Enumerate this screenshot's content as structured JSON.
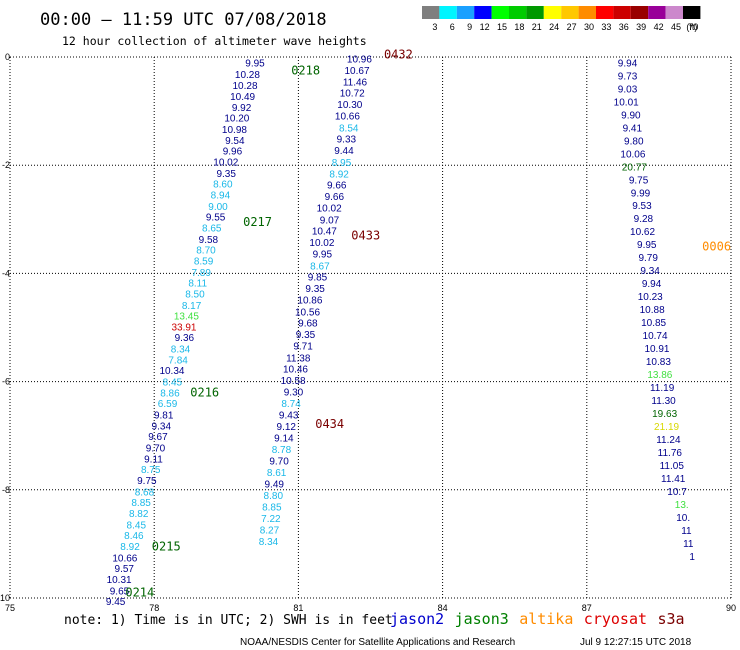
{
  "header": {
    "title": "00:00 – 11:59 UTC 07/08/2018",
    "subtitle": "12 hour collection of altimeter wave heights"
  },
  "legend": {
    "scale": [
      {
        "label": "3",
        "color": "#7f7f7f"
      },
      {
        "label": "6",
        "color": "#00f5ff"
      },
      {
        "label": "9",
        "color": "#1aa0ff"
      },
      {
        "label": "12",
        "color": "#0000ff"
      },
      {
        "label": "15",
        "color": "#00ff00"
      },
      {
        "label": "18",
        "color": "#00cc00"
      },
      {
        "label": "21",
        "color": "#009900"
      },
      {
        "label": "24",
        "color": "#ffff00"
      },
      {
        "label": "27",
        "color": "#ffc800"
      },
      {
        "label": "30",
        "color": "#ff8c00"
      },
      {
        "label": "33",
        "color": "#ff0000"
      },
      {
        "label": "36",
        "color": "#cc0000"
      },
      {
        "label": "39",
        "color": "#990000"
      },
      {
        "label": "42",
        "color": "#990099"
      },
      {
        "label": "45",
        "color": "#cc88cc"
      },
      {
        "label": "70",
        "color": "#000000"
      }
    ],
    "unit": "(ft)"
  },
  "axes": {
    "x_ticks": [
      "75",
      "78",
      "81",
      "84",
      "87",
      "90"
    ],
    "y_ticks": [
      "0",
      "-2",
      "-4",
      "-6",
      "-8",
      "-10"
    ],
    "lon_range": [
      75,
      90
    ],
    "lat_range": [
      -10,
      0
    ]
  },
  "colors": {
    "navy": "#00008b",
    "cyan": "#1ab8e8",
    "green": "#006400",
    "lime": "#40e040",
    "yellow": "#d8d800",
    "red": "#cc0000",
    "darkred": "#7a0000",
    "orange": "#ff8c00"
  },
  "track_a": [
    {
      "t": "9.95",
      "lon": 80.3,
      "lat": -0.1,
      "c": "navy"
    },
    {
      "t": "10.28",
      "lon": 80.2,
      "lat": -0.31,
      "c": "navy"
    },
    {
      "t": "10.28",
      "lon": 80.15,
      "lat": -0.52,
      "c": "navy"
    },
    {
      "t": "10.49",
      "lon": 80.1,
      "lat": -0.72,
      "c": "navy"
    },
    {
      "t": "9.92",
      "lon": 80.02,
      "lat": -0.92,
      "c": "navy"
    },
    {
      "t": "10.20",
      "lon": 79.98,
      "lat": -1.12,
      "c": "navy"
    },
    {
      "t": "10.98",
      "lon": 79.93,
      "lat": -1.33,
      "c": "navy"
    },
    {
      "t": "9.54",
      "lon": 79.88,
      "lat": -1.53,
      "c": "navy"
    },
    {
      "t": "9.96",
      "lon": 79.83,
      "lat": -1.73,
      "c": "navy"
    },
    {
      "t": "10.02",
      "lon": 79.75,
      "lat": -1.93,
      "c": "navy"
    },
    {
      "t": "9.35",
      "lon": 79.7,
      "lat": -2.14,
      "c": "navy"
    },
    {
      "t": "8.60",
      "lon": 79.63,
      "lat": -2.34,
      "c": "cyan"
    },
    {
      "t": "8.94",
      "lon": 79.58,
      "lat": -2.54,
      "c": "cyan"
    },
    {
      "t": "9.00",
      "lon": 79.53,
      "lat": -2.75,
      "c": "cyan"
    },
    {
      "t": "9.55",
      "lon": 79.48,
      "lat": -2.95,
      "c": "navy"
    },
    {
      "t": "8.65",
      "lon": 79.4,
      "lat": -3.15,
      "c": "cyan"
    },
    {
      "t": "9.58",
      "lon": 79.33,
      "lat": -3.36,
      "c": "navy"
    },
    {
      "t": "8.70",
      "lon": 79.28,
      "lat": -3.56,
      "c": "cyan"
    },
    {
      "t": "8.59",
      "lon": 79.23,
      "lat": -3.76,
      "c": "cyan"
    },
    {
      "t": "7.89",
      "lon": 79.18,
      "lat": -3.97,
      "c": "cyan"
    },
    {
      "t": "8.11",
      "lon": 79.1,
      "lat": -4.17,
      "c": "cyan"
    },
    {
      "t": "8.50",
      "lon": 79.05,
      "lat": -4.37,
      "c": "cyan"
    },
    {
      "t": "8.17",
      "lon": 78.98,
      "lat": -4.58,
      "c": "cyan"
    },
    {
      "t": "13.45",
      "lon": 78.93,
      "lat": -4.78,
      "c": "lime"
    },
    {
      "t": "33.91",
      "lon": 78.88,
      "lat": -4.98,
      "c": "red"
    },
    {
      "t": "9.36",
      "lon": 78.83,
      "lat": -5.18,
      "c": "navy"
    },
    {
      "t": "8.34",
      "lon": 78.75,
      "lat": -5.39,
      "c": "cyan"
    },
    {
      "t": "7.84",
      "lon": 78.7,
      "lat": -5.59,
      "c": "cyan"
    },
    {
      "t": "10.34",
      "lon": 78.63,
      "lat": -5.79,
      "c": "navy"
    },
    {
      "t": "8.45",
      "lon": 78.58,
      "lat": -6.0,
      "c": "cyan"
    },
    {
      "t": "8.86",
      "lon": 78.53,
      "lat": -6.2,
      "c": "cyan"
    },
    {
      "t": "6.59",
      "lon": 78.48,
      "lat": -6.4,
      "c": "cyan"
    },
    {
      "t": "9.81",
      "lon": 78.4,
      "lat": -6.61,
      "c": "navy"
    },
    {
      "t": "9.34",
      "lon": 78.35,
      "lat": -6.81,
      "c": "navy"
    },
    {
      "t": "9.67",
      "lon": 78.28,
      "lat": -7.01,
      "c": "navy"
    },
    {
      "t": "9.70",
      "lon": 78.23,
      "lat": -7.22,
      "c": "navy"
    },
    {
      "t": "9.11",
      "lon": 78.18,
      "lat": -7.42,
      "c": "navy"
    },
    {
      "t": "8.75",
      "lon": 78.13,
      "lat": -7.62,
      "c": "cyan"
    },
    {
      "t": "9.75",
      "lon": 78.05,
      "lat": -7.82,
      "c": "navy"
    },
    {
      "t": "8.68",
      "lon": 78.0,
      "lat": -8.03,
      "c": "cyan"
    },
    {
      "t": "8.85",
      "lon": 77.93,
      "lat": -8.23,
      "c": "cyan"
    },
    {
      "t": "8.82",
      "lon": 77.88,
      "lat": -8.43,
      "c": "cyan"
    },
    {
      "t": "8.45",
      "lon": 77.83,
      "lat": -8.64,
      "c": "cyan"
    },
    {
      "t": "8.46",
      "lon": 77.78,
      "lat": -8.84,
      "c": "cyan"
    },
    {
      "t": "8.92",
      "lon": 77.7,
      "lat": -9.04,
      "c": "cyan"
    },
    {
      "t": "10.66",
      "lon": 77.65,
      "lat": -9.25,
      "c": "navy"
    },
    {
      "t": "9.57",
      "lon": 77.58,
      "lat": -9.45,
      "c": "navy"
    },
    {
      "t": "10.31",
      "lon": 77.53,
      "lat": -9.65,
      "c": "navy"
    },
    {
      "t": "9.65",
      "lon": 77.48,
      "lat": -9.86,
      "c": "navy"
    },
    {
      "t": "9.45",
      "lon": 77.4,
      "lat": -10.06,
      "c": "navy"
    }
  ],
  "track_b": [
    {
      "t": "10.96",
      "lon": 82.53,
      "lat": -0.03,
      "c": "navy"
    },
    {
      "t": "10.67",
      "lon": 82.48,
      "lat": -0.24,
      "c": "navy"
    },
    {
      "t": "11.46",
      "lon": 82.43,
      "lat": -0.45,
      "c": "navy"
    },
    {
      "t": "10.72",
      "lon": 82.38,
      "lat": -0.66,
      "c": "navy"
    },
    {
      "t": "10.30",
      "lon": 82.33,
      "lat": -0.87,
      "c": "navy"
    },
    {
      "t": "10.66",
      "lon": 82.28,
      "lat": -1.08,
      "c": "navy"
    },
    {
      "t": "8.54",
      "lon": 82.25,
      "lat": -1.3,
      "c": "cyan"
    },
    {
      "t": "9.33",
      "lon": 82.2,
      "lat": -1.51,
      "c": "navy"
    },
    {
      "t": "9.44",
      "lon": 82.15,
      "lat": -1.72,
      "c": "navy"
    },
    {
      "t": "8.95",
      "lon": 82.1,
      "lat": -1.94,
      "c": "cyan"
    },
    {
      "t": "8.92",
      "lon": 82.05,
      "lat": -2.15,
      "c": "cyan"
    },
    {
      "t": "9.66",
      "lon": 82.0,
      "lat": -2.36,
      "c": "navy"
    },
    {
      "t": "9.66",
      "lon": 81.95,
      "lat": -2.57,
      "c": "navy"
    },
    {
      "t": "10.02",
      "lon": 81.9,
      "lat": -2.78,
      "c": "navy"
    },
    {
      "t": "9.07",
      "lon": 81.85,
      "lat": -3.0,
      "c": "navy"
    },
    {
      "t": "10.47",
      "lon": 81.8,
      "lat": -3.21,
      "c": "navy"
    },
    {
      "t": "10.02",
      "lon": 81.75,
      "lat": -3.42,
      "c": "navy"
    },
    {
      "t": "9.95",
      "lon": 81.7,
      "lat": -3.63,
      "c": "navy"
    },
    {
      "t": "8.67",
      "lon": 81.65,
      "lat": -3.85,
      "c": "cyan"
    },
    {
      "t": "9.85",
      "lon": 81.6,
      "lat": -4.06,
      "c": "navy"
    },
    {
      "t": "9.35",
      "lon": 81.55,
      "lat": -4.27,
      "c": "navy"
    },
    {
      "t": "10.86",
      "lon": 81.5,
      "lat": -4.48,
      "c": "navy"
    },
    {
      "t": "10.56",
      "lon": 81.45,
      "lat": -4.7,
      "c": "navy"
    },
    {
      "t": "9.68",
      "lon": 81.4,
      "lat": -4.91,
      "c": "navy"
    },
    {
      "t": "9.35",
      "lon": 81.35,
      "lat": -5.12,
      "c": "navy"
    },
    {
      "t": "9.71",
      "lon": 81.3,
      "lat": -5.33,
      "c": "navy"
    },
    {
      "t": "11.38",
      "lon": 81.25,
      "lat": -5.55,
      "c": "navy"
    },
    {
      "t": "10.46",
      "lon": 81.2,
      "lat": -5.76,
      "c": "navy"
    },
    {
      "t": "10.58",
      "lon": 81.15,
      "lat": -5.97,
      "c": "navy"
    },
    {
      "t": "9.30",
      "lon": 81.1,
      "lat": -6.18,
      "c": "navy"
    },
    {
      "t": "8.74",
      "lon": 81.05,
      "lat": -6.4,
      "c": "cyan"
    },
    {
      "t": "9.43",
      "lon": 81.0,
      "lat": -6.61,
      "c": "navy"
    },
    {
      "t": "9.12",
      "lon": 80.95,
      "lat": -6.82,
      "c": "navy"
    },
    {
      "t": "9.14",
      "lon": 80.9,
      "lat": -7.03,
      "c": "navy"
    },
    {
      "t": "8.78",
      "lon": 80.85,
      "lat": -7.25,
      "c": "cyan"
    },
    {
      "t": "9.70",
      "lon": 80.8,
      "lat": -7.46,
      "c": "navy"
    },
    {
      "t": "8.61",
      "lon": 80.75,
      "lat": -7.67,
      "c": "cyan"
    },
    {
      "t": "9.49",
      "lon": 80.7,
      "lat": -7.88,
      "c": "navy"
    },
    {
      "t": "8.80",
      "lon": 80.68,
      "lat": -8.1,
      "c": "cyan"
    },
    {
      "t": "8.85",
      "lon": 80.65,
      "lat": -8.31,
      "c": "cyan"
    },
    {
      "t": "7.22",
      "lon": 80.63,
      "lat": -8.52,
      "c": "cyan"
    },
    {
      "t": "8.27",
      "lon": 80.6,
      "lat": -8.73,
      "c": "cyan"
    },
    {
      "t": "8.34",
      "lon": 80.58,
      "lat": -8.95,
      "c": "cyan"
    }
  ],
  "track_c": [
    {
      "t": "9.94",
      "lon": 88.05,
      "lat": -0.1,
      "c": "navy"
    },
    {
      "t": "9.73",
      "lon": 88.05,
      "lat": -0.34,
      "c": "navy"
    },
    {
      "t": "9.03",
      "lon": 88.05,
      "lat": -0.58,
      "c": "navy"
    },
    {
      "t": "10.01",
      "lon": 88.08,
      "lat": -0.82,
      "c": "navy"
    },
    {
      "t": "9.90",
      "lon": 88.12,
      "lat": -1.06,
      "c": "navy"
    },
    {
      "t": "9.41",
      "lon": 88.15,
      "lat": -1.3,
      "c": "navy"
    },
    {
      "t": "9.80",
      "lon": 88.18,
      "lat": -1.54,
      "c": "navy"
    },
    {
      "t": "10.06",
      "lon": 88.22,
      "lat": -1.78,
      "c": "navy"
    },
    {
      "t": "20.77",
      "lon": 88.25,
      "lat": -2.02,
      "c": "green"
    },
    {
      "t": "9.75",
      "lon": 88.28,
      "lat": -2.26,
      "c": "navy"
    },
    {
      "t": "9.99",
      "lon": 88.32,
      "lat": -2.5,
      "c": "navy"
    },
    {
      "t": "9.53",
      "lon": 88.35,
      "lat": -2.74,
      "c": "navy"
    },
    {
      "t": "9.28",
      "lon": 88.38,
      "lat": -2.98,
      "c": "navy"
    },
    {
      "t": "10.62",
      "lon": 88.42,
      "lat": -3.22,
      "c": "navy"
    },
    {
      "t": "9.95",
      "lon": 88.45,
      "lat": -3.46,
      "c": "navy"
    },
    {
      "t": "9.79",
      "lon": 88.48,
      "lat": -3.7,
      "c": "navy"
    },
    {
      "t": "9.34",
      "lon": 88.52,
      "lat": -3.94,
      "c": "navy"
    },
    {
      "t": "9.94",
      "lon": 88.55,
      "lat": -4.18,
      "c": "navy"
    },
    {
      "t": "10.23",
      "lon": 88.58,
      "lat": -4.42,
      "c": "navy"
    },
    {
      "t": "10.88",
      "lon": 88.62,
      "lat": -4.66,
      "c": "navy"
    },
    {
      "t": "10.85",
      "lon": 88.65,
      "lat": -4.9,
      "c": "navy"
    },
    {
      "t": "10.74",
      "lon": 88.68,
      "lat": -5.14,
      "c": "navy"
    },
    {
      "t": "10.91",
      "lon": 88.72,
      "lat": -5.38,
      "c": "navy"
    },
    {
      "t": "10.83",
      "lon": 88.75,
      "lat": -5.62,
      "c": "navy"
    },
    {
      "t": "13.86",
      "lon": 88.78,
      "lat": -5.86,
      "c": "lime"
    },
    {
      "t": "11.19",
      "lon": 88.82,
      "lat": -6.1,
      "c": "navy"
    },
    {
      "t": "11.30",
      "lon": 88.85,
      "lat": -6.34,
      "c": "navy"
    },
    {
      "t": "19.63",
      "lon": 88.88,
      "lat": -6.58,
      "c": "green"
    },
    {
      "t": "21.19",
      "lon": 88.92,
      "lat": -6.82,
      "c": "yellow"
    },
    {
      "t": "11.24",
      "lon": 88.95,
      "lat": -7.06,
      "c": "navy"
    },
    {
      "t": "11.76",
      "lon": 88.98,
      "lat": -7.3,
      "c": "navy"
    },
    {
      "t": "11.05",
      "lon": 89.02,
      "lat": -7.54,
      "c": "navy"
    },
    {
      "t": "11.41",
      "lon": 89.05,
      "lat": -7.78,
      "c": "navy"
    },
    {
      "t": "10.7",
      "lon": 89.08,
      "lat": -8.02,
      "c": "navy"
    },
    {
      "t": "13.",
      "lon": 89.12,
      "lat": -8.26,
      "c": "lime"
    },
    {
      "t": "10.",
      "lon": 89.15,
      "lat": -8.5,
      "c": "navy"
    },
    {
      "t": "11",
      "lon": 89.18,
      "lat": -8.74,
      "c": "navy"
    },
    {
      "t": "11",
      "lon": 89.22,
      "lat": -8.98,
      "c": "navy"
    },
    {
      "t": "1",
      "lon": 89.25,
      "lat": -9.22,
      "c": "navy"
    }
  ],
  "pass_labels": [
    {
      "t": "0432",
      "lon": 82.78,
      "lat": 0.05,
      "c": "darkred"
    },
    {
      "t": "0218",
      "lon": 80.85,
      "lat": -0.25,
      "c": "green"
    },
    {
      "t": "0217",
      "lon": 79.85,
      "lat": -3.05,
      "c": "green"
    },
    {
      "t": "0433",
      "lon": 82.1,
      "lat": -3.3,
      "c": "darkred"
    },
    {
      "t": "0216",
      "lon": 78.75,
      "lat": -6.2,
      "c": "green"
    },
    {
      "t": "0434",
      "lon": 81.35,
      "lat": -6.78,
      "c": "darkred"
    },
    {
      "t": "0215",
      "lon": 77.95,
      "lat": -9.05,
      "c": "green"
    },
    {
      "t": "0214",
      "lon": 77.4,
      "lat": -9.9,
      "c": "green"
    },
    {
      "t": "0006",
      "lon": 89.4,
      "lat": -3.5,
      "c": "orange"
    }
  ],
  "notes": {
    "note_text": "note:  1) Time is in UTC; 2) SWH is in feet"
  },
  "satellites": [
    {
      "name": "jason2",
      "color": "#0000cd"
    },
    {
      "name": "jason3",
      "color": "#008000"
    },
    {
      "name": "altika",
      "color": "#ff8c00"
    },
    {
      "name": "cryosat",
      "color": "#dd0000"
    },
    {
      "name": "s3a",
      "color": "#7a0000"
    }
  ],
  "footer": {
    "credit": "NOAA/NESDIS Center for Satellite Applications and Research",
    "timestamp": "Jul  9 12:27:15 UTC 2018"
  }
}
